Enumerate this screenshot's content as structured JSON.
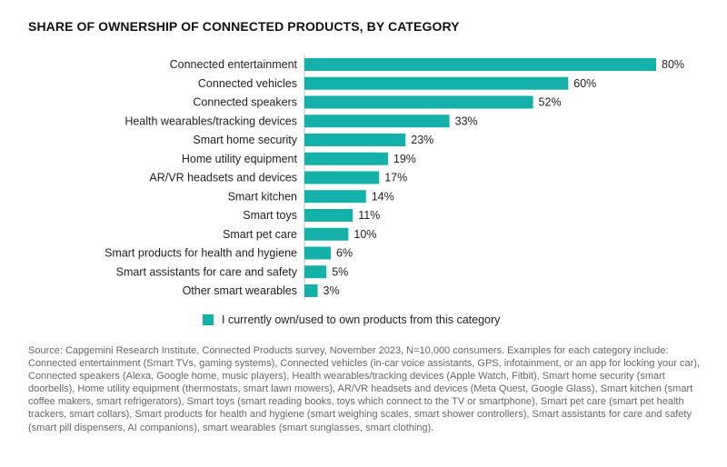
{
  "colors": {
    "bar": "#14b1ab"
  },
  "chart_data": {
    "type": "bar",
    "orientation": "horizontal",
    "title": "SHARE OF OWNERSHIP OF CONNECTED PRODUCTS, BY CATEGORY",
    "categories": [
      "Connected entertainment",
      "Connected vehicles",
      "Connected speakers",
      "Health wearables/tracking devices",
      "Smart home security",
      "Home utility equipment",
      "AR/VR headsets and devices",
      "Smart kitchen",
      "Smart toys",
      "Smart pet care",
      "Smart products for health and hygiene",
      "Smart assistants for care and safety",
      "Other smart wearables"
    ],
    "series": [
      {
        "name": "I currently own/used to own products from this category",
        "values": [
          80,
          60,
          52,
          33,
          23,
          19,
          17,
          14,
          11,
          10,
          6,
          5,
          3
        ],
        "labels": [
          "80%",
          "60%",
          "52%",
          "33%",
          "23%",
          "19%",
          "17%",
          "14%",
          "11%",
          "10%",
          "6%",
          "5%",
          "3%"
        ]
      }
    ],
    "xlim": [
      0,
      80
    ],
    "grid": false,
    "legend_position": "bottom"
  },
  "source": "Source: Capgemini Research Institute, Connected Products survey, November 2023, N=10,000 consumers. Examples for each category include: Connected entertainment (Smart TVs,  gaming systems), Connected vehicles (in-car voice assistants, GPS, infotainment, or an app for locking your car), Connected speakers (Alexa, Google home, music players), Health wearables/tracking devices (Apple Watch, Fitbit), Smart home security (smart doorbells), Home utility equipment (thermostats, smart lawn mowers), AR/VR headsets and devices (Meta Quest, Google Glass), Smart kitchen (smart coffee makers, smart refrigerators), Smart toys (smart reading books, toys which connect to the TV or smartphone), Smart pet care (smart pet health trackers, smart collars), Smart products for health and hygiene (smart weighing scales, smart shower controllers), Smart assistants for care and safety (smart pill dispensers, AI companions), smart wearables (smart sunglasses, smart clothing)."
}
